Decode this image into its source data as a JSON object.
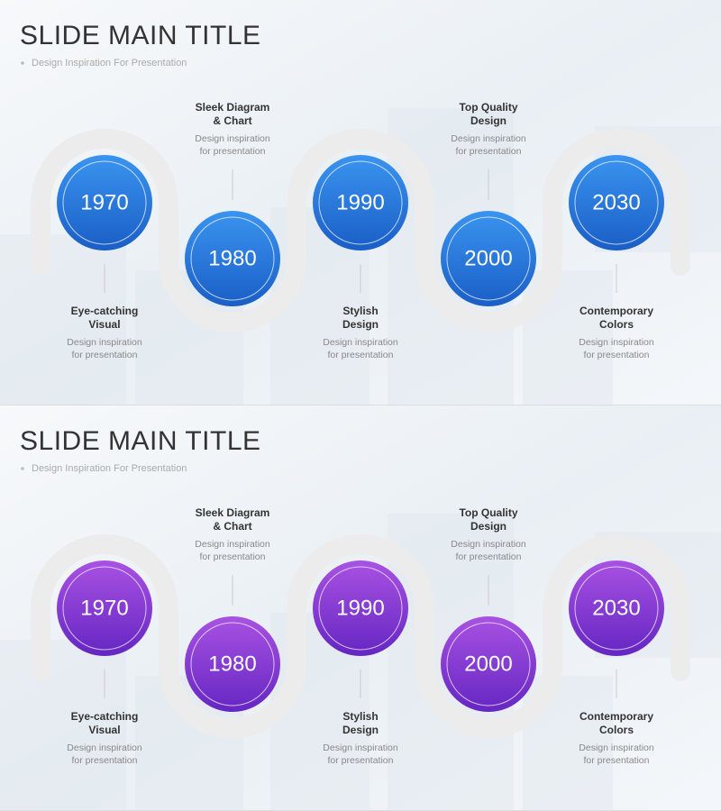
{
  "slides": [
    {
      "title": "SLIDE MAIN TITLE",
      "subtitle": "Design Inspiration For Presentation",
      "milestones": [
        {
          "year": "1970",
          "heading": [
            "Eye-catching",
            "Visual"
          ],
          "description": [
            "Design inspiration",
            "for presentation"
          ]
        },
        {
          "year": "1980",
          "heading": [
            "Sleek Diagram",
            "& Chart"
          ],
          "description": [
            "Design inspiration",
            "for presentation"
          ]
        },
        {
          "year": "1990",
          "heading": [
            "Stylish",
            "Design"
          ],
          "description": [
            "Design inspiration",
            "for presentation"
          ]
        },
        {
          "year": "2000",
          "heading": [
            "Top Quality",
            "Design"
          ],
          "description": [
            "Design inspiration",
            "for presentation"
          ]
        },
        {
          "year": "2030",
          "heading": [
            "Contemporary",
            "Colors"
          ],
          "description": [
            "Design inspiration",
            "for presentation"
          ]
        }
      ]
    },
    {
      "title": "SLIDE MAIN TITLE",
      "subtitle": "Design Inspiration For Presentation",
      "milestones": [
        {
          "year": "1970",
          "heading": [
            "Eye-catching",
            "Visual"
          ],
          "description": [
            "Design inspiration",
            "for presentation"
          ]
        },
        {
          "year": "1980",
          "heading": [
            "Sleek Diagram",
            "& Chart"
          ],
          "description": [
            "Design inspiration",
            "for presentation"
          ]
        },
        {
          "year": "1990",
          "heading": [
            "Stylish",
            "Design"
          ],
          "description": [
            "Design inspiration",
            "for presentation"
          ]
        },
        {
          "year": "2000",
          "heading": [
            "Top Quality",
            "Design"
          ],
          "description": [
            "Design inspiration",
            "for presentation"
          ]
        },
        {
          "year": "2030",
          "heading": [
            "Contemporary",
            "Colors"
          ],
          "description": [
            "Design inspiration",
            "for presentation"
          ]
        }
      ]
    }
  ]
}
